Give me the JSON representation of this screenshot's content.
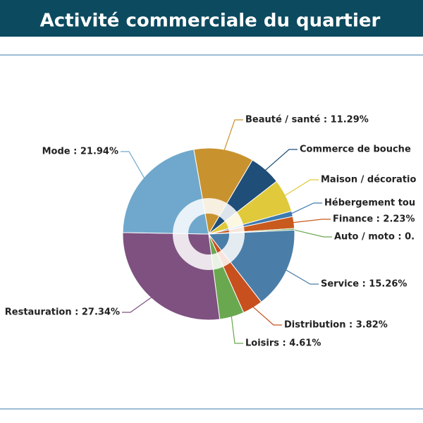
{
  "chart_data": {
    "type": "pie",
    "title": "Activité commerciale du quartier",
    "categories": [
      "Beauté / santé",
      "Commerce de bouche",
      "Maison / décoratio",
      "Hébergement tou",
      "Finance",
      "Auto / moto",
      "Service",
      "Distribution",
      "Loisirs",
      "Restauration",
      "Mode"
    ],
    "values": [
      11.29,
      5.98,
      6.2,
      1.03,
      2.23,
      0.3,
      15.26,
      3.82,
      4.61,
      27.34,
      21.94
    ],
    "value_labels": [
      "Beauté / santé : 11.29%",
      "Commerce de bouche",
      "Maison / décoratio",
      "Hébergement tou",
      "Finance : 2.23%",
      "Auto / moto : 0.",
      "Service : 15.26%",
      "Distribution : 3.82%",
      "Loisirs : 4.61%",
      "Restauration : 27.34%",
      "Mode : 21.94%"
    ],
    "colors": [
      "#c8922e",
      "#1f4e79",
      "#e0c93a",
      "#3d7ab0",
      "#c85a1e",
      "#6aa84f",
      "#4a7ea8",
      "#c8501e",
      "#6aa84f",
      "#7e5180",
      "#6fa8cc"
    ]
  }
}
